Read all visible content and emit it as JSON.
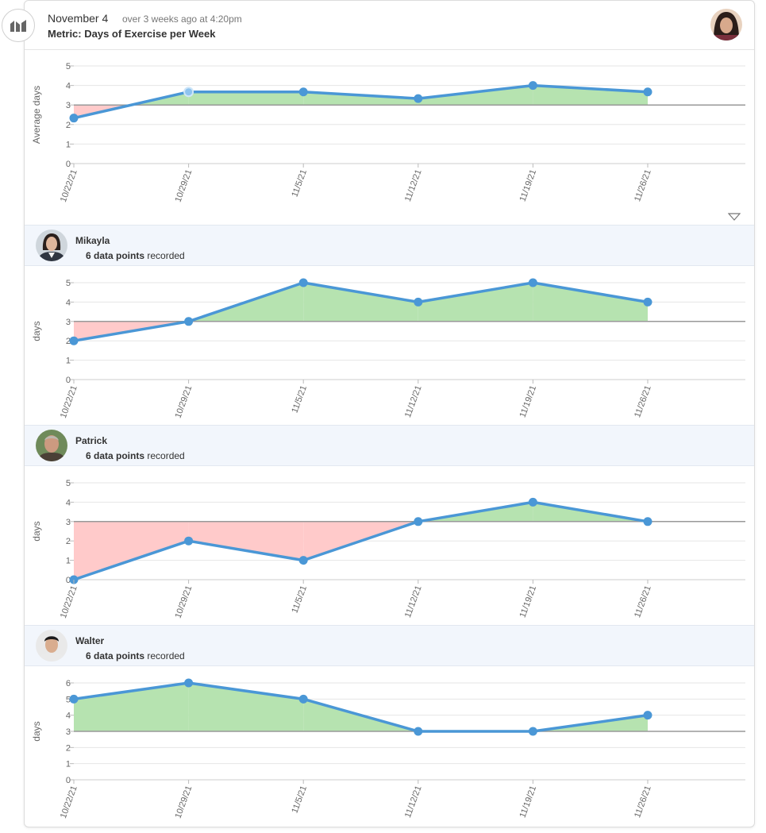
{
  "header": {
    "date": "November 4",
    "ago": "over 3 weeks ago at 4:20pm",
    "metric": "Metric: Days of Exercise per Week",
    "icon": "metric-chart-icon"
  },
  "colors": {
    "line": "#4a97d6",
    "above": "#b6e3b0",
    "below": "#ffcaca",
    "target": "#999999",
    "grid": "#e6e6e6"
  },
  "chart_data": [
    {
      "type": "line",
      "x": [
        "10/22/21",
        "10/29/21",
        "11/5/21",
        "11/12/21",
        "11/19/21",
        "11/26/21"
      ],
      "y": [
        2.33,
        3.67,
        3.67,
        3.33,
        4.0,
        3.67
      ],
      "target": 3,
      "ylabel": "Average days",
      "ylim": [
        0,
        5
      ],
      "yticks": [
        "5",
        "4",
        "3",
        "2",
        "1",
        "0"
      ]
    },
    {
      "type": "line",
      "person": "Mikayla",
      "x": [
        "10/22/21",
        "10/29/21",
        "11/5/21",
        "11/12/21",
        "11/19/21",
        "11/26/21"
      ],
      "y": [
        2,
        3,
        5,
        4,
        5,
        4
      ],
      "target": 3,
      "ylabel": "days",
      "ylim": [
        0,
        5
      ],
      "yticks": [
        "5",
        "4",
        "3",
        "2",
        "1",
        "0"
      ]
    },
    {
      "type": "line",
      "person": "Patrick",
      "x": [
        "10/22/21",
        "10/29/21",
        "11/5/21",
        "11/12/21",
        "11/19/21",
        "11/26/21"
      ],
      "y": [
        0,
        2,
        1,
        3,
        4,
        3
      ],
      "target": 3,
      "ylabel": "days",
      "ylim": [
        0,
        5
      ],
      "yticks": [
        "5",
        "4",
        "3",
        "2",
        "1",
        "0"
      ]
    },
    {
      "type": "line",
      "person": "Walter",
      "x": [
        "10/22/21",
        "10/29/21",
        "11/5/21",
        "11/12/21",
        "11/19/21",
        "11/26/21"
      ],
      "y": [
        5,
        6,
        5,
        3,
        3,
        4
      ],
      "target": 3,
      "ylabel": "days",
      "ylim": [
        0,
        6
      ],
      "yticks": [
        "6",
        "5",
        "4",
        "3",
        "2",
        "1",
        "0"
      ]
    }
  ],
  "people": [
    {
      "name": "Mikayla",
      "count": "6 data points",
      "suffix": " recorded"
    },
    {
      "name": "Patrick",
      "count": "6 data points",
      "suffix": " recorded"
    },
    {
      "name": "Walter",
      "count": "6 data points",
      "suffix": " recorded"
    }
  ]
}
